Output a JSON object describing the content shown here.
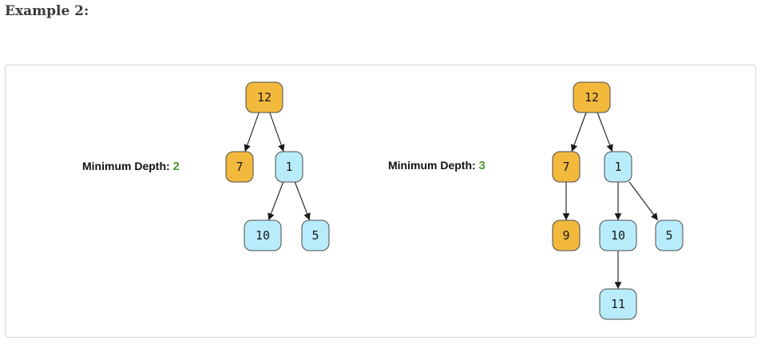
{
  "heading": "Example 2:",
  "trees": [
    {
      "label": "Minimum Depth:",
      "value": "2",
      "nodes": [
        {
          "id": "a12",
          "text": "12",
          "color": "orange"
        },
        {
          "id": "a7",
          "text": "7",
          "color": "orange"
        },
        {
          "id": "a1",
          "text": "1",
          "color": "blue"
        },
        {
          "id": "a10",
          "text": "10",
          "color": "blue"
        },
        {
          "id": "a5",
          "text": "5",
          "color": "blue"
        }
      ],
      "edges": [
        [
          "a12",
          "a7"
        ],
        [
          "a12",
          "a1"
        ],
        [
          "a1",
          "a10"
        ],
        [
          "a1",
          "a5"
        ]
      ]
    },
    {
      "label": "Minimum Depth:",
      "value": "3",
      "nodes": [
        {
          "id": "b12",
          "text": "12",
          "color": "orange"
        },
        {
          "id": "b7",
          "text": "7",
          "color": "orange"
        },
        {
          "id": "b1",
          "text": "1",
          "color": "blue"
        },
        {
          "id": "b9",
          "text": "9",
          "color": "orange"
        },
        {
          "id": "b10",
          "text": "10",
          "color": "blue"
        },
        {
          "id": "b5",
          "text": "5",
          "color": "blue"
        },
        {
          "id": "b11",
          "text": "11",
          "color": "blue"
        }
      ],
      "edges": [
        [
          "b12",
          "b7"
        ],
        [
          "b12",
          "b1"
        ],
        [
          "b7",
          "b9"
        ],
        [
          "b1",
          "b10"
        ],
        [
          "b1",
          "b5"
        ],
        [
          "b10",
          "b11"
        ]
      ]
    }
  ],
  "colors": {
    "orange": "#f2b93d",
    "blue": "#b8ecfb",
    "value_green": "#4f9a2f"
  }
}
